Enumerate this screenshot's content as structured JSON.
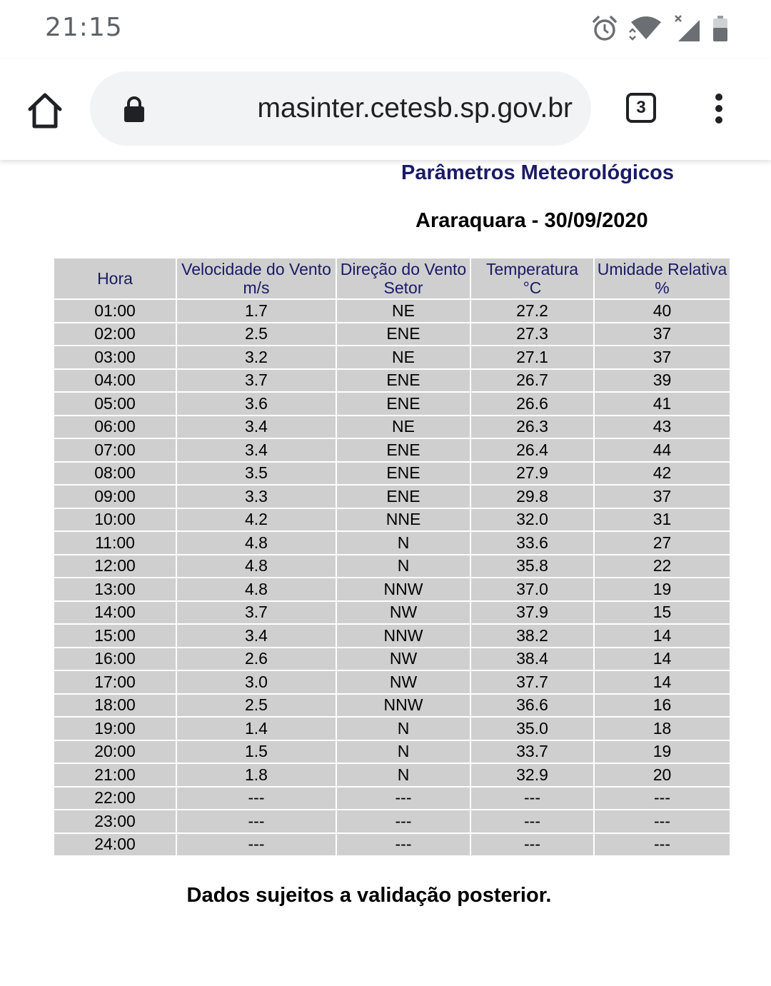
{
  "status_bar": {
    "time": "21:15",
    "icons": [
      "alarm-icon",
      "wifi-icon",
      "cell-signal-icon",
      "battery-icon"
    ]
  },
  "browser": {
    "url": "sistemasinter.cetesb.sp.gov.br",
    "tab_count": "3"
  },
  "page": {
    "title": "Parâmetros Meteorológicos",
    "station": "Araraquara - 30/09/2020",
    "footer": "Dados sujeitos a validação posterior."
  },
  "table": {
    "headers": [
      {
        "line1": "Hora",
        "line2": ""
      },
      {
        "line1": "Velocidade do Vento",
        "line2": "m/s"
      },
      {
        "line1": "Direção do Vento",
        "line2": "Setor"
      },
      {
        "line1": "Temperatura",
        "line2": "°C"
      },
      {
        "line1": "Umidade Relativa",
        "line2": "%"
      }
    ],
    "rows": [
      [
        "01:00",
        "1.7",
        "NE",
        "27.2",
        "40"
      ],
      [
        "02:00",
        "2.5",
        "ENE",
        "27.3",
        "37"
      ],
      [
        "03:00",
        "3.2",
        "NE",
        "27.1",
        "37"
      ],
      [
        "04:00",
        "3.7",
        "ENE",
        "26.7",
        "39"
      ],
      [
        "05:00",
        "3.6",
        "ENE",
        "26.6",
        "41"
      ],
      [
        "06:00",
        "3.4",
        "NE",
        "26.3",
        "43"
      ],
      [
        "07:00",
        "3.4",
        "ENE",
        "26.4",
        "44"
      ],
      [
        "08:00",
        "3.5",
        "ENE",
        "27.9",
        "42"
      ],
      [
        "09:00",
        "3.3",
        "ENE",
        "29.8",
        "37"
      ],
      [
        "10:00",
        "4.2",
        "NNE",
        "32.0",
        "31"
      ],
      [
        "11:00",
        "4.8",
        "N",
        "33.6",
        "27"
      ],
      [
        "12:00",
        "4.8",
        "N",
        "35.8",
        "22"
      ],
      [
        "13:00",
        "4.8",
        "NNW",
        "37.0",
        "19"
      ],
      [
        "14:00",
        "3.7",
        "NW",
        "37.9",
        "15"
      ],
      [
        "15:00",
        "3.4",
        "NNW",
        "38.2",
        "14"
      ],
      [
        "16:00",
        "2.6",
        "NW",
        "38.4",
        "14"
      ],
      [
        "17:00",
        "3.0",
        "NW",
        "37.7",
        "14"
      ],
      [
        "18:00",
        "2.5",
        "NNW",
        "36.6",
        "16"
      ],
      [
        "19:00",
        "1.4",
        "N",
        "35.0",
        "18"
      ],
      [
        "20:00",
        "1.5",
        "N",
        "33.7",
        "19"
      ],
      [
        "21:00",
        "1.8",
        "N",
        "32.9",
        "20"
      ],
      [
        "22:00",
        "---",
        "---",
        "---",
        "---"
      ],
      [
        "23:00",
        "---",
        "---",
        "---",
        "---"
      ],
      [
        "24:00",
        "---",
        "---",
        "---",
        "---"
      ]
    ]
  },
  "colors": {
    "header_text": "#1a1a66",
    "cell_bg": "#cfcfcf",
    "omnibox_bg": "#f1f3f4"
  }
}
